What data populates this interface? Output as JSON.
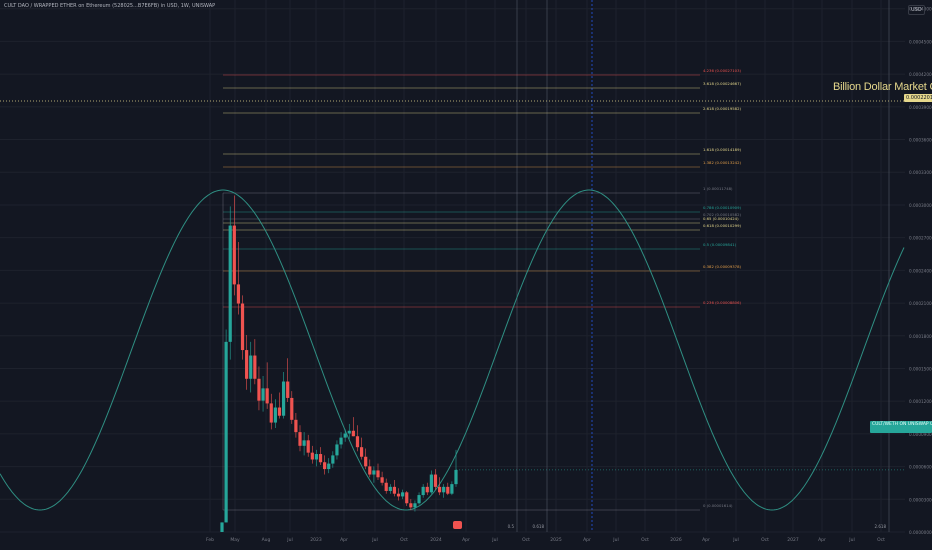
{
  "header": {
    "symbol": "CULT DAO / WRAPPED ETHER on Ethereum (528025...B7E6FB) in USD, 1W, UNISWAP",
    "unit": "USD"
  },
  "annotation": {
    "market_cap_label": "Billion Dollar Market Cap",
    "market_cap_price": "0.00022019",
    "last_price_tag": "CULT/WETH ON UNISWAP 0.00004539"
  },
  "colors": {
    "background": "#131722",
    "up": "#26a69a",
    "down": "#ef5350",
    "wave": "#2f8f83",
    "market_cap": "#e6d88c",
    "time_marker": "#2962ff"
  },
  "chart_data": {
    "type": "candlestick",
    "title": "CULT DAO / WRAPPED ETHER on Ethereum (528025...B7E6FB) in USD, 1W, UNISWAP",
    "ylim": [
      0,
      0.000488
    ],
    "y_ticks": [
      "0.00048000",
      "0.00045000",
      "0.00042000",
      "0.00039000",
      "0.00036000",
      "0.00033000",
      "0.00030000",
      "0.00027000",
      "0.00024000",
      "0.00021000",
      "0.00018000",
      "0.00015000",
      "0.00012000",
      "0.00009000",
      "0.00006000",
      "0.00003000",
      "0.00000000"
    ],
    "x_ticks": [
      "Feb",
      "May",
      "Aug",
      "Jul",
      "2023",
      "Apr",
      "Jul",
      "Oct",
      "2024",
      "Apr",
      "Jul",
      "Oct",
      "2025",
      "Apr",
      "Jul",
      "Oct",
      "2026",
      "Apr",
      "Jul",
      "Oct",
      "2027",
      "Apr",
      "Jul",
      "Oct"
    ],
    "x_markers": [
      {
        "label": "0.5",
        "kind": "line"
      },
      {
        "label": "0.618",
        "kind": "line"
      },
      {
        "label": "Mon 21 Apr '25",
        "kind": "highlight"
      },
      {
        "label": "2.618",
        "kind": "line"
      }
    ],
    "fib_levels": [
      {
        "label": "4.236 (0.00027103)",
        "value": 0.00027103,
        "color": "#ef5350"
      },
      {
        "label": "3.618 (0.00024667)",
        "value": 0.00024667,
        "color": "#e6d88c"
      },
      {
        "label": "2.618 (0.00019582)",
        "value": 0.00019582,
        "color": "#e6d88c"
      },
      {
        "label": "1.618 (0.00014189)",
        "value": 0.00014189,
        "color": "#e6d88c"
      },
      {
        "label": "1.382 (0.00013242)",
        "value": 0.00013242,
        "color": "#e6a04a"
      },
      {
        "label": "1 (0.00011748)",
        "value": 0.00011748,
        "color": "#787b86"
      },
      {
        "label": "0.786 (0.00010909)",
        "value": 0.00010909,
        "color": "#26a69a"
      },
      {
        "label": "0.702 (0.00010582)",
        "value": 0.00010582,
        "color": "#787b86"
      },
      {
        "label": "0.65 (0.00010424)",
        "value": 0.00010424,
        "color": "#e6d88c"
      },
      {
        "label": "0.618 (0.00010299)",
        "value": 0.00010299,
        "color": "#e6d88c"
      },
      {
        "label": "0.5 (0.00009841)",
        "value": 9.841e-05,
        "color": "#26a69a"
      },
      {
        "label": "0.382 (0.00009378)",
        "value": 9.378e-05,
        "color": "#e6a04a"
      },
      {
        "label": "0.236 (0.00008806)",
        "value": 8.806e-05,
        "color": "#ef5350"
      },
      {
        "label": "0 (0.00001614)",
        "value": 1.614e-05,
        "color": "#787b86"
      }
    ],
    "fib_level_order_note": "",
    "market_cap_level": 0.00022019,
    "last_price": 4.539e-05,
    "candles": [
      [
        0.0,
        7e-06,
        0.0,
        7e-06
      ],
      [
        7e-06,
        0.000148,
        7e-06,
        0.000139
      ],
      [
        0.000139,
        0.000238,
        0.000126,
        0.000224
      ],
      [
        0.000224,
        0.000246,
        0.000173,
        0.000181
      ],
      [
        0.000181,
        0.000212,
        0.000159,
        0.000167
      ],
      [
        0.000167,
        0.000173,
        0.000126,
        0.000133
      ],
      [
        0.000133,
        0.000144,
        0.000104,
        0.000112
      ],
      [
        0.000112,
        0.000139,
        0.000102,
        0.000129
      ],
      [
        0.000129,
        0.000141,
        0.000108,
        0.000112
      ],
      [
        0.000112,
        0.000121,
        8.9e-05,
        9.6e-05
      ],
      [
        9.6e-05,
        0.000114,
        8.8e-05,
        0.000105
      ],
      [
        0.000105,
        0.000124,
        9e-05,
        9.4e-05
      ],
      [
        9.4e-05,
        0.000101,
        7.5e-05,
        8e-05
      ],
      [
        8e-05,
        9.7e-05,
        7.6e-05,
        9.1e-05
      ],
      [
        9.1e-05,
        0.000102,
        8.3e-05,
        8.5e-05
      ],
      [
        8.5e-05,
        0.000117,
        8.3e-05,
        0.00011
      ],
      [
        0.00011,
        0.000127,
        9.5e-05,
        9.8e-05
      ],
      [
        9.8e-05,
        0.000103,
        7.9e-05,
        8.2e-05
      ],
      [
        8.2e-05,
        8.7e-05,
        6.9e-05,
        7.3e-05
      ],
      [
        7.3e-05,
        7.8e-05,
        5.9e-05,
        6.3e-05
      ],
      [
        6.3e-05,
        7.3e-05,
        5.6e-05,
        6.7e-05
      ],
      [
        6.7e-05,
        7.1e-05,
        5.5e-05,
        5.8e-05
      ],
      [
        5.8e-05,
        6.3e-05,
        5e-05,
        5.3e-05
      ],
      [
        5.3e-05,
        6e-05,
        4.8e-05,
        5.7e-05
      ],
      [
        5.7e-05,
        6.2e-05,
        4.9e-05,
        5.1e-05
      ],
      [
        5.1e-05,
        5.6e-05,
        4.2e-05,
        4.6e-05
      ],
      [
        4.6e-05,
        5.4e-05,
        4.3e-05,
        5e-05
      ],
      [
        5e-05,
        5.9e-05,
        4.7e-05,
        5.6e-05
      ],
      [
        5.6e-05,
        6.7e-05,
        5.3e-05,
        6.4e-05
      ],
      [
        6.4e-05,
        7.3e-05,
        6.1e-05,
        6.9e-05
      ],
      [
        6.9e-05,
        7.5e-05,
        6.6e-05,
        7.2e-05
      ],
      [
        7.2e-05,
        7.9e-05,
        6.8e-05,
        7.4e-05
      ],
      [
        7.4e-05,
        8.4e-05,
        7e-05,
        7e-05
      ],
      [
        7e-05,
        7.8e-05,
        5.9e-05,
        6.2e-05
      ],
      [
        6.2e-05,
        6.9e-05,
        5.3e-05,
        5.5e-05
      ],
      [
        5.5e-05,
        6.1e-05,
        4.6e-05,
        4.8e-05
      ],
      [
        4.8e-05,
        5.3e-05,
        4e-05,
        4.2e-05
      ],
      [
        4.2e-05,
        4.8e-05,
        3.6e-05,
        4.5e-05
      ],
      [
        4.5e-05,
        5e-05,
        3.8e-05,
        4e-05
      ],
      [
        4e-05,
        4.4e-05,
        3.4e-05,
        3.6e-05
      ],
      [
        3.6e-05,
        3.9e-05,
        2.8e-05,
        3e-05
      ],
      [
        3e-05,
        3.5e-05,
        2.8e-05,
        3.3e-05
      ],
      [
        3.3e-05,
        3.8e-05,
        2.6e-05,
        2.8e-05
      ],
      [
        2.8e-05,
        3.2e-05,
        2.3e-05,
        2.6e-05
      ],
      [
        2.6e-05,
        3.1e-05,
        2.4e-05,
        2.9e-05
      ],
      [
        2.9e-05,
        3e-05,
        1.9e-05,
        2.1e-05
      ],
      [
        2.1e-05,
        2.4e-05,
        1.6e-05,
        1.8e-05
      ],
      [
        1.8e-05,
        2.3e-05,
        1.5e-05,
        2.1e-05
      ],
      [
        2.1e-05,
        2.9e-05,
        2e-05,
        2.7e-05
      ],
      [
        2.7e-05,
        3.5e-05,
        2.5e-05,
        3.3e-05
      ],
      [
        3.3e-05,
        3.6e-05,
        2.7e-05,
        2.9e-05
      ],
      [
        2.9e-05,
        4.5e-05,
        2.8e-05,
        4.2e-05
      ],
      [
        4.2e-05,
        4.6e-05,
        3.1e-05,
        3.3e-05
      ],
      [
        3.3e-05,
        4e-05,
        2.7e-05,
        2.9e-05
      ],
      [
        2.9e-05,
        3.5e-05,
        2.5e-05,
        3.3e-05
      ],
      [
        3.3e-05,
        3.6e-05,
        2.7e-05,
        2.8e-05
      ],
      [
        2.8e-05,
        3.7e-05,
        2.7e-05,
        3.5e-05
      ],
      [
        3.5e-05,
        6e-05,
        3.3e-05,
        4.539e-05
      ]
    ]
  }
}
